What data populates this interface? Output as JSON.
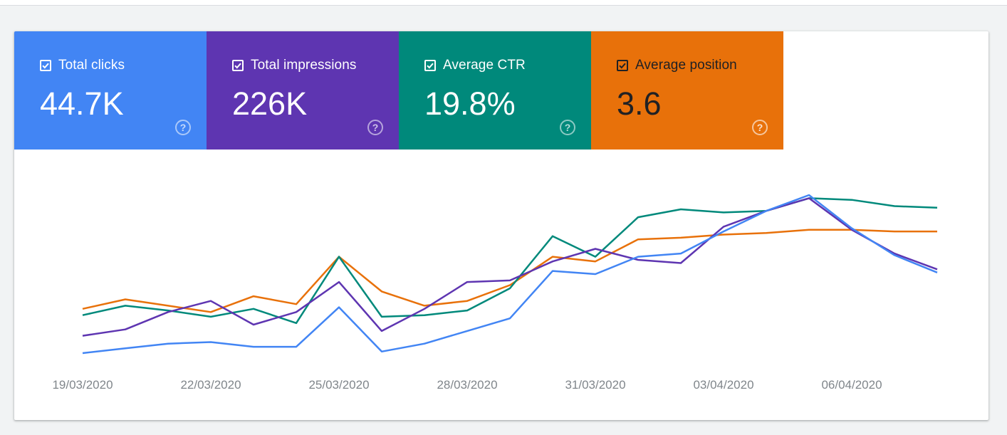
{
  "metrics": [
    {
      "key": "clicks",
      "label": "Total clicks",
      "value": "44.7K",
      "color": "#4285f4",
      "checked": true
    },
    {
      "key": "impressions",
      "label": "Total impressions",
      "value": "226K",
      "color": "#5e35b1",
      "checked": true
    },
    {
      "key": "ctr",
      "label": "Average CTR",
      "value": "19.8%",
      "color": "#00897b",
      "checked": true
    },
    {
      "key": "position",
      "label": "Average position",
      "value": "3.6",
      "color": "#e8710a",
      "checked": true
    }
  ],
  "help_icon": "question-mark-circle-icon",
  "chart_data": {
    "type": "line",
    "x": [
      "19/03/2020",
      "20/03/2020",
      "21/03/2020",
      "22/03/2020",
      "23/03/2020",
      "24/03/2020",
      "25/03/2020",
      "26/03/2020",
      "27/03/2020",
      "28/03/2020",
      "29/03/2020",
      "30/03/2020",
      "31/03/2020",
      "01/04/2020",
      "02/04/2020",
      "03/04/2020",
      "04/04/2020",
      "05/04/2020",
      "06/04/2020",
      "07/04/2020",
      "08/04/2020"
    ],
    "tick_labels": [
      "19/03/2020",
      "22/03/2020",
      "25/03/2020",
      "28/03/2020",
      "31/03/2020",
      "03/04/2020",
      "06/04/2020"
    ],
    "tick_indices": [
      0,
      3,
      6,
      9,
      12,
      15,
      18
    ],
    "ylim": [
      0,
      100
    ],
    "grid": false,
    "axis_note": "no y-axis labels shown; values are relative heights within each series' own scale",
    "series": [
      {
        "name": "Average position",
        "color": "#e8710a",
        "values": [
          28,
          34,
          30,
          26,
          36,
          31,
          61,
          39,
          30,
          33,
          43,
          61,
          58,
          72,
          73,
          75,
          76,
          78,
          78,
          77,
          77
        ]
      },
      {
        "name": "Average CTR",
        "color": "#00897b",
        "values": [
          24,
          30,
          27,
          23,
          28,
          19,
          61,
          23,
          24,
          27,
          41,
          74,
          61,
          86,
          91,
          89,
          90,
          98,
          97,
          93,
          92
        ]
      },
      {
        "name": "Total impressions",
        "color": "#5e35b1",
        "values": [
          11,
          15,
          26,
          33,
          18,
          26,
          45,
          14,
          28,
          45,
          46,
          58,
          66,
          59,
          57,
          80,
          90,
          98,
          78,
          63,
          53
        ]
      },
      {
        "name": "Total clicks",
        "color": "#4285f4",
        "values": [
          0,
          3,
          6,
          7,
          4,
          4,
          29,
          1,
          6,
          14,
          22,
          52,
          50,
          61,
          63,
          77,
          90,
          100,
          79,
          62,
          51
        ]
      }
    ]
  }
}
